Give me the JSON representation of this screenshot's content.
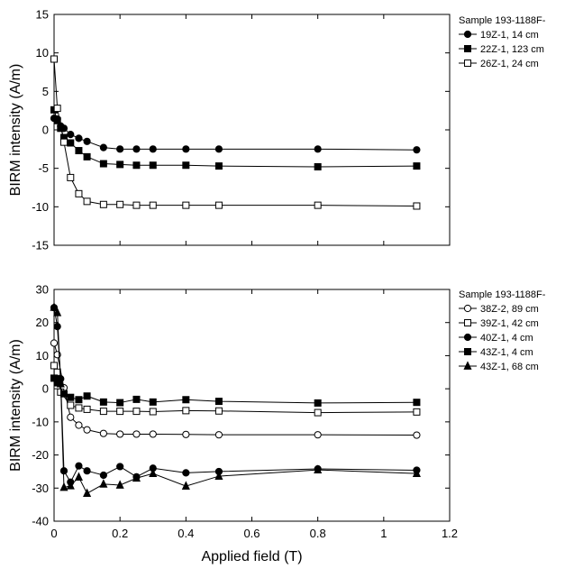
{
  "chart_data": [
    {
      "type": "line",
      "ylabel": "BIRM intensity (A/m)",
      "xlabel": "",
      "xlim": [
        0,
        1.2
      ],
      "ylim": [
        -15,
        15
      ],
      "yticks": [
        15,
        10,
        5,
        0,
        -5,
        -10,
        -15
      ],
      "xticks": [],
      "legend_title": "Sample 193-1188F-",
      "legend_position": "right",
      "series": [
        {
          "name": "19Z-1, 14 cm",
          "marker": "circle-filled",
          "points": [
            [
              0,
              1.5
            ],
            [
              0.01,
              1.4
            ],
            [
              0.02,
              0.5
            ],
            [
              0.03,
              0.2
            ],
            [
              0.05,
              -0.6
            ],
            [
              0.075,
              -1.1
            ],
            [
              0.1,
              -1.5
            ],
            [
              0.15,
              -2.3
            ],
            [
              0.2,
              -2.5
            ],
            [
              0.25,
              -2.5
            ],
            [
              0.3,
              -2.5
            ],
            [
              0.4,
              -2.5
            ],
            [
              0.5,
              -2.5
            ],
            [
              0.8,
              -2.5
            ],
            [
              1.1,
              -2.6
            ]
          ]
        },
        {
          "name": "22Z-1, 123 cm",
          "marker": "square-filled",
          "points": [
            [
              0,
              2.6
            ],
            [
              0.01,
              1.2
            ],
            [
              0.02,
              0.2
            ],
            [
              0.03,
              -1.0
            ],
            [
              0.05,
              -1.7
            ],
            [
              0.075,
              -2.7
            ],
            [
              0.1,
              -3.5
            ],
            [
              0.15,
              -4.4
            ],
            [
              0.2,
              -4.5
            ],
            [
              0.25,
              -4.6
            ],
            [
              0.3,
              -4.6
            ],
            [
              0.4,
              -4.6
            ],
            [
              0.5,
              -4.7
            ],
            [
              0.8,
              -4.8
            ],
            [
              1.1,
              -4.7
            ]
          ]
        },
        {
          "name": "26Z-1, 24 cm",
          "marker": "square-open",
          "points": [
            [
              0,
              9.2
            ],
            [
              0.01,
              2.8
            ],
            [
              0.03,
              -1.6
            ],
            [
              0.05,
              -6.2
            ],
            [
              0.075,
              -8.3
            ],
            [
              0.1,
              -9.3
            ],
            [
              0.15,
              -9.7
            ],
            [
              0.2,
              -9.7
            ],
            [
              0.25,
              -9.8
            ],
            [
              0.3,
              -9.8
            ],
            [
              0.4,
              -9.8
            ],
            [
              0.5,
              -9.8
            ],
            [
              0.8,
              -9.8
            ],
            [
              1.1,
              -9.9
            ]
          ]
        }
      ]
    },
    {
      "type": "line",
      "ylabel": "BIRM intensity (A/m)",
      "xlabel": "Applied field (T)",
      "xlim": [
        0,
        1.2
      ],
      "ylim": [
        -40,
        30
      ],
      "yticks": [
        30,
        20,
        10,
        0,
        -10,
        -20,
        -30,
        -40
      ],
      "xticks": [
        "0",
        "0.2",
        "0.4",
        "0.6",
        "0.8",
        "1",
        "1.2"
      ],
      "legend_title": "Sample 193-1188F-",
      "legend_position": "right",
      "series": [
        {
          "name": "38Z-2, 89 cm",
          "marker": "circle-open",
          "points": [
            [
              0,
              13.8
            ],
            [
              0.01,
              10.3
            ],
            [
              0.03,
              0.3
            ],
            [
              0.05,
              -8.6
            ],
            [
              0.075,
              -11.0
            ],
            [
              0.1,
              -12.4
            ],
            [
              0.15,
              -13.5
            ],
            [
              0.2,
              -13.7
            ],
            [
              0.25,
              -13.7
            ],
            [
              0.3,
              -13.7
            ],
            [
              0.4,
              -13.8
            ],
            [
              0.5,
              -13.9
            ],
            [
              0.8,
              -13.9
            ],
            [
              1.1,
              -14.0
            ]
          ]
        },
        {
          "name": "39Z-1, 42 cm",
          "marker": "square-open",
          "points": [
            [
              0,
              7.0
            ],
            [
              0.01,
              5.0
            ],
            [
              0.02,
              -1.0
            ],
            [
              0.05,
              -5.0
            ],
            [
              0.075,
              -5.8
            ],
            [
              0.1,
              -6.2
            ],
            [
              0.15,
              -6.8
            ],
            [
              0.2,
              -6.8
            ],
            [
              0.25,
              -6.8
            ],
            [
              0.3,
              -6.9
            ],
            [
              0.4,
              -6.6
            ],
            [
              0.5,
              -6.7
            ],
            [
              0.8,
              -7.2
            ],
            [
              1.1,
              -7.0
            ]
          ]
        },
        {
          "name": "40Z-1, 4 cm",
          "marker": "circle-filled",
          "points": [
            [
              0,
              24.5
            ],
            [
              0.01,
              18.8
            ],
            [
              0.02,
              3.0
            ],
            [
              0.03,
              -24.8
            ],
            [
              0.05,
              -28.2
            ],
            [
              0.075,
              -23.3
            ],
            [
              0.1,
              -24.8
            ],
            [
              0.15,
              -26.1
            ],
            [
              0.2,
              -23.5
            ],
            [
              0.25,
              -26.6
            ],
            [
              0.3,
              -24.0
            ],
            [
              0.4,
              -25.4
            ],
            [
              0.5,
              -25.0
            ],
            [
              0.8,
              -24.2
            ],
            [
              1.1,
              -24.6
            ]
          ]
        },
        {
          "name": "43Z-1, 4 cm",
          "marker": "square-filled",
          "points": [
            [
              0,
              3.2
            ],
            [
              0.01,
              1.8
            ],
            [
              0.03,
              -1.5
            ],
            [
              0.05,
              -2.6
            ],
            [
              0.075,
              -3.3
            ],
            [
              0.1,
              -2.2
            ],
            [
              0.15,
              -4.0
            ],
            [
              0.2,
              -4.2
            ],
            [
              0.25,
              -3.2
            ],
            [
              0.3,
              -4.0
            ],
            [
              0.4,
              -3.3
            ],
            [
              0.5,
              -3.8
            ],
            [
              0.8,
              -4.3
            ],
            [
              1.1,
              -4.1
            ]
          ]
        },
        {
          "name": "43Z-1, 68 cm",
          "marker": "triangle-filled",
          "points": [
            [
              0,
              24.6
            ],
            [
              0.01,
              23.0
            ],
            [
              0.02,
              1.5
            ],
            [
              0.03,
              -29.8
            ],
            [
              0.05,
              -29.3
            ],
            [
              0.075,
              -26.7
            ],
            [
              0.1,
              -31.6
            ],
            [
              0.15,
              -28.8
            ],
            [
              0.2,
              -29.1
            ],
            [
              0.25,
              -27.0
            ],
            [
              0.3,
              -25.6
            ],
            [
              0.4,
              -29.4
            ],
            [
              0.5,
              -26.4
            ],
            [
              0.8,
              -24.5
            ],
            [
              1.1,
              -25.6
            ]
          ]
        }
      ]
    }
  ]
}
